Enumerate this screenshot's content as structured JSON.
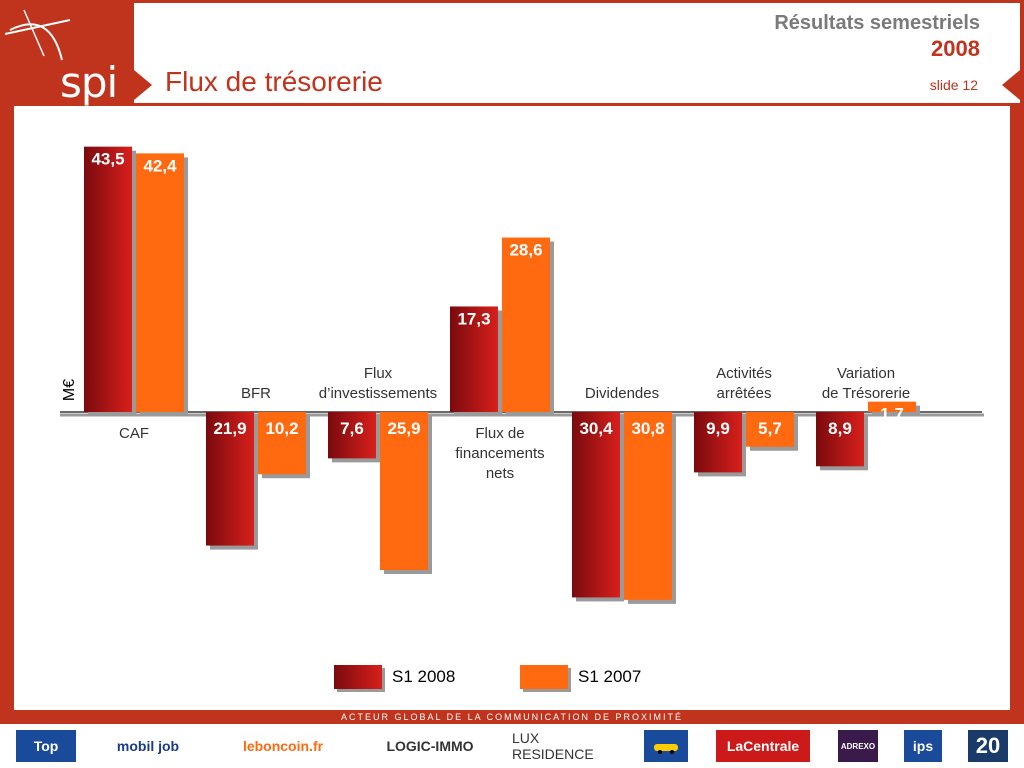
{
  "header": {
    "brand": "spir",
    "title": "Flux de trésorerie",
    "corner_line1": "Résultats semestriels",
    "corner_line2": "2008",
    "slide": "slide 12"
  },
  "footer": {
    "tagline": "ACTEUR GLOBAL DE LA COMMUNICATION DE PROXIMITÉ",
    "logos": [
      "Top",
      "mobil job",
      "leboncoin.fr",
      "LOGIC-IMMO",
      "LUX RESIDENCE",
      "LaCentrale",
      "ADREXO",
      "ips",
      "20"
    ]
  },
  "colors": {
    "s1_2008": "#b01218",
    "s1_2007": "#ff6a10",
    "brand_red": "#c0341e"
  },
  "chart_data": {
    "type": "bar",
    "title": "",
    "ylabel": "M€",
    "categories": [
      "CAF",
      "BFR",
      "Flux d'investissements",
      "Flux de financements nets",
      "Dividendes",
      "Activités arrêtées",
      "Variation de Trésorerie"
    ],
    "category_labels": [
      {
        "lines": [
          "CAF"
        ],
        "position": "below"
      },
      {
        "lines": [
          "BFR"
        ],
        "position": "above"
      },
      {
        "lines": [
          "Flux",
          "d’investissements"
        ],
        "position": "above"
      },
      {
        "lines": [
          "Flux de",
          "financements",
          "nets"
        ],
        "position": "below"
      },
      {
        "lines": [
          "Dividendes"
        ],
        "position": "above"
      },
      {
        "lines": [
          "Activités",
          "arrêtées"
        ],
        "position": "above"
      },
      {
        "lines": [
          "Variation",
          "de Trésorerie"
        ],
        "position": "above"
      }
    ],
    "series": [
      {
        "name": "S1 2008",
        "values": [
          43.5,
          -21.9,
          -7.6,
          17.3,
          -30.4,
          -9.9,
          -8.9
        ],
        "labels": [
          "43,5",
          "21,9",
          "7,6",
          "17,3",
          "30,4",
          "9,9",
          "8,9"
        ]
      },
      {
        "name": "S1 2007",
        "values": [
          42.4,
          -10.2,
          -25.9,
          28.6,
          -30.8,
          -5.7,
          1.7
        ],
        "labels": [
          "42,4",
          "10,2",
          "25,9",
          "28,6",
          "30,8",
          "5,7",
          "1,7"
        ]
      }
    ],
    "legend_position": "bottom-center",
    "grid": false
  }
}
